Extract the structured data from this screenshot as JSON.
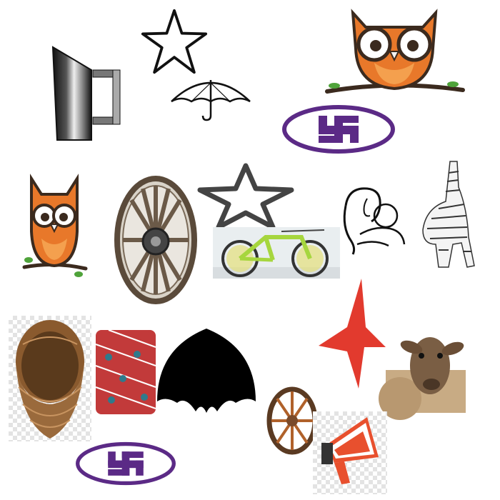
{
  "colors": {
    "owl_orange": "#e8782a",
    "owl_dark": "#3b2a1e",
    "emblem_purple": "#5b2a86",
    "red_star": "#e23a2e",
    "branch_green": "#4fa33a",
    "wicker": "#9a6a3c",
    "bike_green": "#a6d63e"
  },
  "items": [
    {
      "name": "metal-jug-image",
      "icon": "jug"
    },
    {
      "name": "star-outline-top",
      "icon": "star-outline"
    },
    {
      "name": "umbrella-outline",
      "icon": "umbrella"
    },
    {
      "name": "owl-on-branch-large",
      "icon": "owl"
    },
    {
      "name": "swastika-emblem-top",
      "icon": "swastika-emblem"
    },
    {
      "name": "owl-on-branch-small",
      "icon": "owl"
    },
    {
      "name": "wooden-wheel-large",
      "icon": "cart-wheel"
    },
    {
      "name": "star-outline-middle",
      "icon": "star-outline"
    },
    {
      "name": "green-bicycle",
      "icon": "bicycle"
    },
    {
      "name": "mother-and-child-drawing",
      "icon": "mother-child"
    },
    {
      "name": "zebra-sketch",
      "icon": "zebra"
    },
    {
      "name": "red-star",
      "icon": "star-filled"
    },
    {
      "name": "wicker-basket",
      "icon": "basket"
    },
    {
      "name": "patterned-cushion",
      "icon": "cushion"
    },
    {
      "name": "umbrella-silhouette",
      "icon": "umbrella-black"
    },
    {
      "name": "sheep-photo",
      "icon": "sheep"
    },
    {
      "name": "wooden-wheel-small",
      "icon": "cart-wheel"
    },
    {
      "name": "megaphone",
      "icon": "megaphone"
    },
    {
      "name": "swastika-emblem-bottom",
      "icon": "swastika-emblem"
    }
  ]
}
